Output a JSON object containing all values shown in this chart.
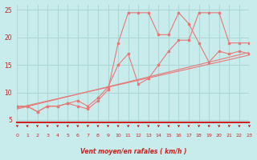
{
  "bg_color": "#c8ecec",
  "grid_color": "#aed8d8",
  "line_color": "#e87878",
  "axis_color": "#cc2222",
  "xlabel": "Vent moyen/en rafales ( km/h )",
  "ylabel_ticks": [
    5,
    10,
    15,
    20,
    25
  ],
  "xticks": [
    0,
    1,
    2,
    3,
    4,
    5,
    6,
    7,
    8,
    9,
    10,
    11,
    12,
    13,
    14,
    15,
    16,
    17,
    18,
    19,
    20,
    21,
    22,
    23
  ],
  "xlim": [
    0,
    23
  ],
  "ylim": [
    4.5,
    26
  ],
  "line1_x": [
    0,
    1,
    2,
    3,
    4,
    5,
    6,
    7,
    8,
    9,
    10,
    11,
    12,
    13,
    14,
    15,
    16,
    17,
    18,
    19,
    20,
    21,
    22,
    23
  ],
  "line1_y": [
    7.5,
    7.5,
    6.5,
    7.5,
    7.5,
    8.0,
    7.5,
    7.0,
    8.5,
    10.5,
    19.0,
    24.5,
    24.5,
    24.5,
    20.5,
    20.5,
    24.5,
    22.5,
    19.0,
    15.5,
    17.5,
    17.0,
    17.5,
    17.0
  ],
  "line2_x": [
    0,
    1,
    2,
    3,
    4,
    5,
    6,
    7,
    8,
    9,
    10,
    11,
    12,
    13,
    14,
    15,
    16,
    17,
    18,
    19,
    20,
    21,
    22,
    23
  ],
  "line2_y": [
    7.5,
    7.5,
    6.5,
    7.5,
    7.5,
    8.0,
    8.5,
    7.5,
    9.0,
    11.0,
    15.0,
    17.0,
    11.5,
    12.5,
    15.0,
    17.5,
    19.5,
    19.5,
    24.5,
    24.5,
    24.5,
    19.0,
    19.0,
    19.0
  ],
  "line3_x": [
    0,
    23
  ],
  "line3_y": [
    7.2,
    16.8
  ],
  "line4_x": [
    0,
    23
  ],
  "line4_y": [
    7.0,
    17.3
  ]
}
